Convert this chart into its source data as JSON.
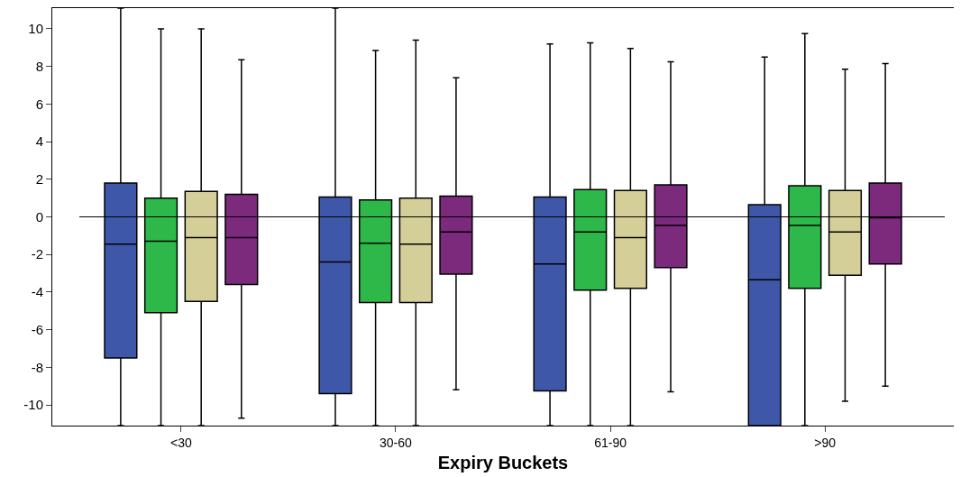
{
  "chart_data": {
    "type": "box",
    "xlabel": "Expiry Buckets",
    "categories": [
      "<30",
      "30-60",
      "61-90",
      ">90"
    ],
    "series": [
      {
        "color": "#3f57a8",
        "boxes": [
          {
            "low": -11.1,
            "q1": -7.5,
            "median": -1.45,
            "q3": 1.8,
            "high": 11.1
          },
          {
            "low": -11.1,
            "q1": -9.4,
            "median": -2.4,
            "q3": 1.05,
            "high": 11.1
          },
          {
            "low": -11.1,
            "q1": -9.25,
            "median": -2.5,
            "q3": 1.05,
            "high": 9.2
          },
          {
            "low": -11.1,
            "q1": -11.1,
            "median": -3.35,
            "q3": 0.65,
            "high": 8.5
          }
        ]
      },
      {
        "color": "#2eb84a",
        "boxes": [
          {
            "low": -11.1,
            "q1": -5.1,
            "median": -1.3,
            "q3": 1.0,
            "high": 10.0
          },
          {
            "low": -11.1,
            "q1": -4.55,
            "median": -1.4,
            "q3": 0.9,
            "high": 8.85
          },
          {
            "low": -11.1,
            "q1": -3.9,
            "median": -0.8,
            "q3": 1.45,
            "high": 9.25
          },
          {
            "low": -11.1,
            "q1": -3.8,
            "median": -0.45,
            "q3": 1.65,
            "high": 9.75
          }
        ]
      },
      {
        "color": "#d4cf98",
        "boxes": [
          {
            "low": -11.1,
            "q1": -4.5,
            "median": -1.1,
            "q3": 1.35,
            "high": 10.0
          },
          {
            "low": -11.1,
            "q1": -4.55,
            "median": -1.45,
            "q3": 1.0,
            "high": 9.4
          },
          {
            "low": -11.1,
            "q1": -3.8,
            "median": -1.1,
            "q3": 1.4,
            "high": 8.95
          },
          {
            "low": -9.8,
            "q1": -3.1,
            "median": -0.8,
            "q3": 1.4,
            "high": 7.85
          }
        ]
      },
      {
        "color": "#7b2a7c",
        "boxes": [
          {
            "low": -10.7,
            "q1": -3.6,
            "median": -1.1,
            "q3": 1.2,
            "high": 8.35
          },
          {
            "low": -9.2,
            "q1": -3.05,
            "median": -0.8,
            "q3": 1.1,
            "high": 7.4
          },
          {
            "low": -9.3,
            "q1": -2.7,
            "median": -0.45,
            "q3": 1.7,
            "high": 8.25
          },
          {
            "low": -9.0,
            "q1": -2.5,
            "median": -0.05,
            "q3": 1.8,
            "high": 8.15
          }
        ]
      }
    ],
    "ylim": [
      -11.1,
      11.1
    ],
    "yticks": [
      -10,
      -8,
      -6,
      -4,
      -2,
      0,
      2,
      4,
      6,
      8,
      10
    ],
    "ref_lines": [
      {
        "axis": "y",
        "value": 0,
        "color": "#000000"
      }
    ]
  }
}
